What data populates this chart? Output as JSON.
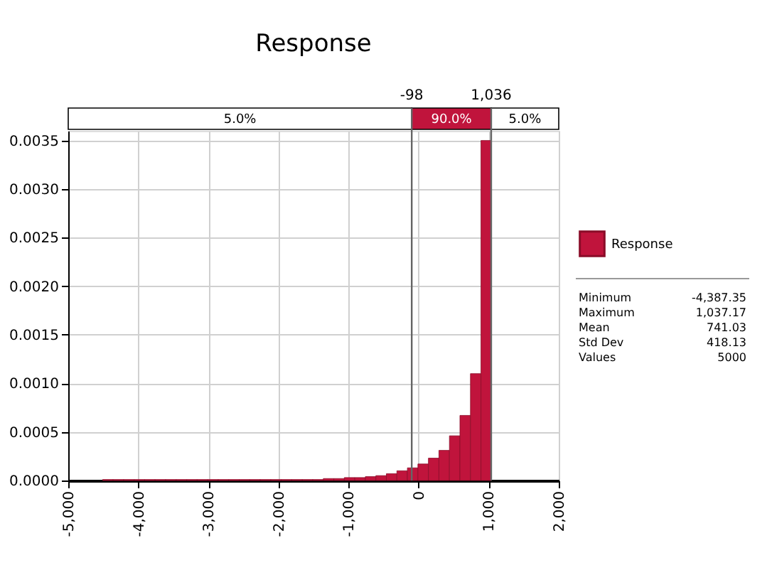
{
  "chart_data": {
    "type": "histogram",
    "title": "Response",
    "bins": [
      -4510,
      -4360,
      -4210,
      -4060,
      -3910,
      -3760,
      -3610,
      -3460,
      -3310,
      -3160,
      -3010,
      -2860,
      -2710,
      -2560,
      -2410,
      -2260,
      -2110,
      -1960,
      -1810,
      -1660,
      -1510,
      -1360,
      -1210,
      -1060,
      -910,
      -760,
      -610,
      -460,
      -310,
      -160,
      -10,
      140,
      290,
      440,
      590,
      740,
      890,
      1040
    ],
    "series": [
      {
        "name": "Response",
        "color": "#c0143c",
        "values": [
          1e-05,
          1e-05,
          1e-05,
          1e-05,
          1e-05,
          1e-05,
          1e-05,
          1e-05,
          1e-05,
          1e-05,
          1e-05,
          1e-05,
          1e-05,
          1e-05,
          1e-05,
          1e-05,
          1e-05,
          1e-05,
          1e-05,
          1e-05,
          1e-05,
          2e-05,
          2e-05,
          3e-05,
          3e-05,
          4e-05,
          5e-05,
          7e-05,
          0.0001,
          0.00013,
          0.00017,
          0.00023,
          0.00031,
          0.00046,
          0.00067,
          0.0011,
          0.0035
        ]
      }
    ],
    "xlim": [
      -5000,
      2000
    ],
    "xticks": [
      {
        "value": -5000,
        "label": "-5,000"
      },
      {
        "value": -4000,
        "label": "-4,000"
      },
      {
        "value": -3000,
        "label": "-3,000"
      },
      {
        "value": -2000,
        "label": "-2,000"
      },
      {
        "value": -1000,
        "label": "-1,000"
      },
      0,
      {
        "value": 1000,
        "label": "1,000"
      },
      {
        "value": 2000,
        "label": "2,000"
      }
    ],
    "ylim": [
      0,
      0.0036
    ],
    "yticks": [
      {
        "value": 0,
        "label": "0.0000"
      },
      0.0005,
      {
        "value": 0.001,
        "label": "0.0010"
      },
      0.0015,
      {
        "value": 0.002,
        "label": "0.0020"
      },
      0.0025,
      {
        "value": 0.003,
        "label": "0.0030"
      },
      0.0035
    ],
    "ref_lines": [
      {
        "axis": "x",
        "value": -98,
        "label": "-98",
        "color": "#666666"
      },
      {
        "axis": "x",
        "value": 1036,
        "label": "1,036",
        "color": "#666666"
      }
    ],
    "annotations": [
      "5.0%",
      "90.0%",
      "5.0%",
      "Minimum",
      "-4,387.35",
      "Maximum",
      "1,037.17",
      "Mean",
      "741.03",
      "Std Dev",
      "418.13",
      "Values",
      "5000"
    ],
    "grid": true,
    "legend": "right"
  }
}
